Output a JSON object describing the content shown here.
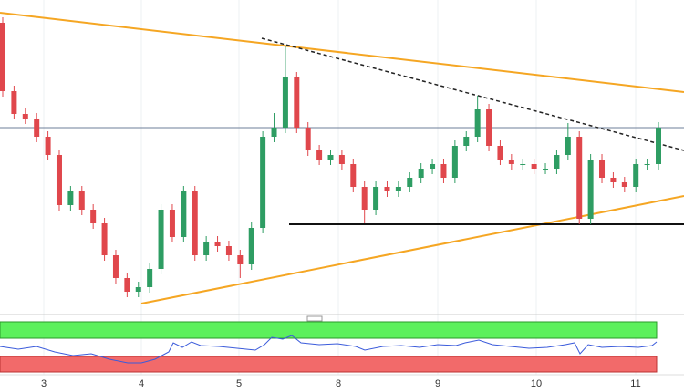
{
  "chart_data": {
    "type": "candlestick",
    "x_labels": [
      "3",
      "4",
      "5",
      "8",
      "9",
      "10",
      "11"
    ],
    "ylim": [
      0,
      340
    ],
    "up_color": "#2e9d63",
    "down_color": "#e0474c",
    "open": [
      315,
      240,
      215,
      210,
      190,
      170,
      115,
      130,
      110,
      95,
      60,
      35,
      20,
      25,
      45,
      110,
      80,
      130,
      60,
      75,
      70,
      60,
      50,
      90,
      190,
      200,
      255,
      200,
      175,
      165,
      170,
      160,
      135,
      110,
      135,
      130,
      135,
      145,
      155,
      160,
      145,
      180,
      190,
      220,
      180,
      165,
      160,
      160,
      155,
      155,
      170,
      190,
      100,
      165,
      145,
      140,
      135,
      160,
      160
    ],
    "high": [
      321,
      246,
      221,
      216,
      196,
      176,
      136,
      136,
      116,
      101,
      66,
      41,
      31,
      51,
      116,
      116,
      136,
      136,
      81,
      81,
      76,
      66,
      96,
      196,
      216,
      290,
      261,
      206,
      181,
      176,
      176,
      166,
      141,
      141,
      141,
      141,
      151,
      161,
      166,
      166,
      186,
      196,
      235,
      226,
      186,
      171,
      166,
      166,
      161,
      176,
      205,
      196,
      171,
      171,
      151,
      146,
      166,
      166,
      206
    ],
    "low": [
      234,
      209,
      204,
      184,
      164,
      109,
      109,
      104,
      89,
      54,
      29,
      14,
      14,
      19,
      39,
      74,
      74,
      54,
      54,
      64,
      54,
      35,
      44,
      84,
      184,
      194,
      194,
      169,
      159,
      159,
      154,
      129,
      95,
      104,
      124,
      124,
      129,
      139,
      149,
      139,
      139,
      174,
      184,
      174,
      159,
      154,
      154,
      149,
      149,
      149,
      164,
      94,
      94,
      139,
      134,
      129,
      129,
      154,
      154
    ],
    "close": [
      240,
      215,
      210,
      190,
      170,
      115,
      130,
      110,
      95,
      60,
      35,
      20,
      25,
      45,
      110,
      80,
      130,
      60,
      75,
      70,
      60,
      50,
      90,
      190,
      200,
      255,
      200,
      175,
      165,
      170,
      160,
      135,
      110,
      135,
      130,
      135,
      145,
      155,
      160,
      145,
      180,
      190,
      220,
      180,
      165,
      160,
      160,
      155,
      155,
      170,
      190,
      100,
      165,
      145,
      140,
      135,
      160,
      160,
      200
    ]
  }
}
